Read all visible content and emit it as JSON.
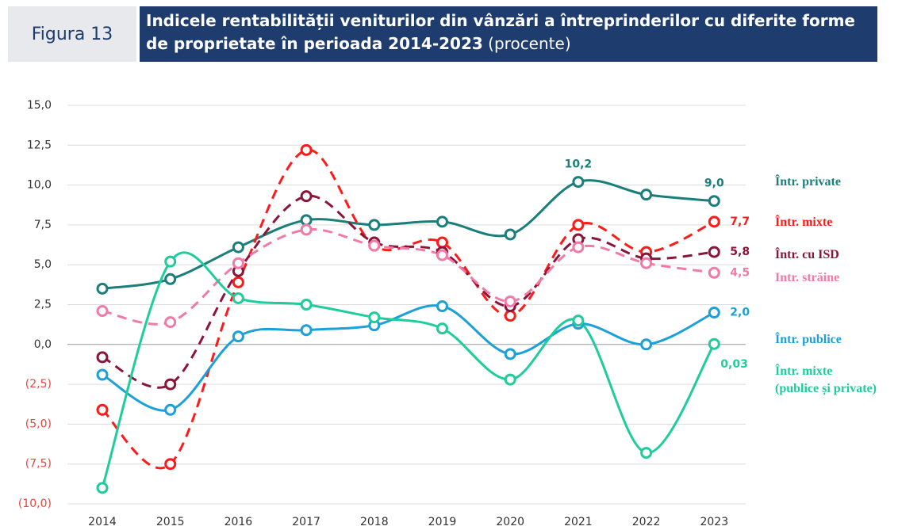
{
  "chart_data": {
    "type": "line",
    "figure_label": "Figura 13",
    "title": "Indicele rentabilității veniturilor din vânzări a întreprinderilor cu diferite forme de proprietate în perioada 2014-2023",
    "subtitle": "(procente)",
    "categories": [
      "2014",
      "2015",
      "2016",
      "2017",
      "2018",
      "2019",
      "2020",
      "2021",
      "2022",
      "2023"
    ],
    "ylim": [
      -10,
      15
    ],
    "yticks": [
      {
        "value": -10,
        "label": "(10,0)"
      },
      {
        "value": -7.5,
        "label": "(7,5)"
      },
      {
        "value": -5,
        "label": "(5,0)"
      },
      {
        "value": -2.5,
        "label": "(2,5)"
      },
      {
        "value": 0,
        "label": "0,0"
      },
      {
        "value": 2.5,
        "label": "2,5"
      },
      {
        "value": 5,
        "label": "5,0"
      },
      {
        "value": 7.5,
        "label": "7,5"
      },
      {
        "value": 10,
        "label": "10,0"
      },
      {
        "value": 12.5,
        "label": "12,5"
      },
      {
        "value": 15,
        "label": "15,0"
      }
    ],
    "grid": true,
    "series": [
      {
        "name": "Într. private",
        "color": "#1a7f7a",
        "dashed": false,
        "values": [
          3.5,
          4.1,
          6.1,
          7.8,
          7.5,
          7.7,
          6.9,
          10.2,
          9.4,
          9.0
        ],
        "value_labels": [
          null,
          null,
          null,
          null,
          null,
          null,
          null,
          "10,2",
          null,
          "9,0"
        ]
      },
      {
        "name": "Într. mixte",
        "color": "#ff1a1a",
        "dashed": true,
        "values": [
          -4.1,
          -7.5,
          3.9,
          12.2,
          6.2,
          6.4,
          1.8,
          7.5,
          5.8,
          7.7
        ],
        "value_labels": [
          null,
          null,
          null,
          null,
          null,
          null,
          null,
          null,
          null,
          "7,7"
        ]
      },
      {
        "name": "Într. cu ISD",
        "color": "#8b1538",
        "dashed": true,
        "values": [
          -0.8,
          -2.5,
          4.6,
          9.3,
          6.4,
          5.8,
          2.4,
          6.6,
          5.4,
          5.8
        ],
        "value_labels": [
          null,
          null,
          null,
          null,
          null,
          null,
          null,
          null,
          null,
          "5,8"
        ]
      },
      {
        "name": "Intr. străine",
        "color": "#f07aa8",
        "dashed": true,
        "values": [
          2.1,
          1.4,
          5.1,
          7.2,
          6.2,
          5.6,
          2.7,
          6.1,
          5.1,
          4.5
        ],
        "value_labels": [
          null,
          null,
          null,
          null,
          null,
          null,
          null,
          null,
          null,
          "4,5"
        ]
      },
      {
        "name": "Într. publice",
        "color": "#1ba1d8",
        "dashed": false,
        "values": [
          -1.9,
          -4.1,
          0.5,
          0.9,
          1.2,
          2.4,
          -0.6,
          1.3,
          0.0,
          2.0
        ],
        "value_labels": [
          null,
          null,
          null,
          null,
          null,
          null,
          null,
          null,
          null,
          "2,0"
        ]
      },
      {
        "name": "Într. mixte\n(publice și private)",
        "color": "#1fcc9b",
        "dashed": false,
        "values": [
          -9.0,
          5.2,
          2.9,
          2.5,
          1.7,
          1.0,
          -2.2,
          1.5,
          -6.8,
          0.03
        ],
        "value_labels": [
          null,
          null,
          null,
          null,
          null,
          null,
          null,
          null,
          null,
          "0,03"
        ]
      }
    ]
  }
}
